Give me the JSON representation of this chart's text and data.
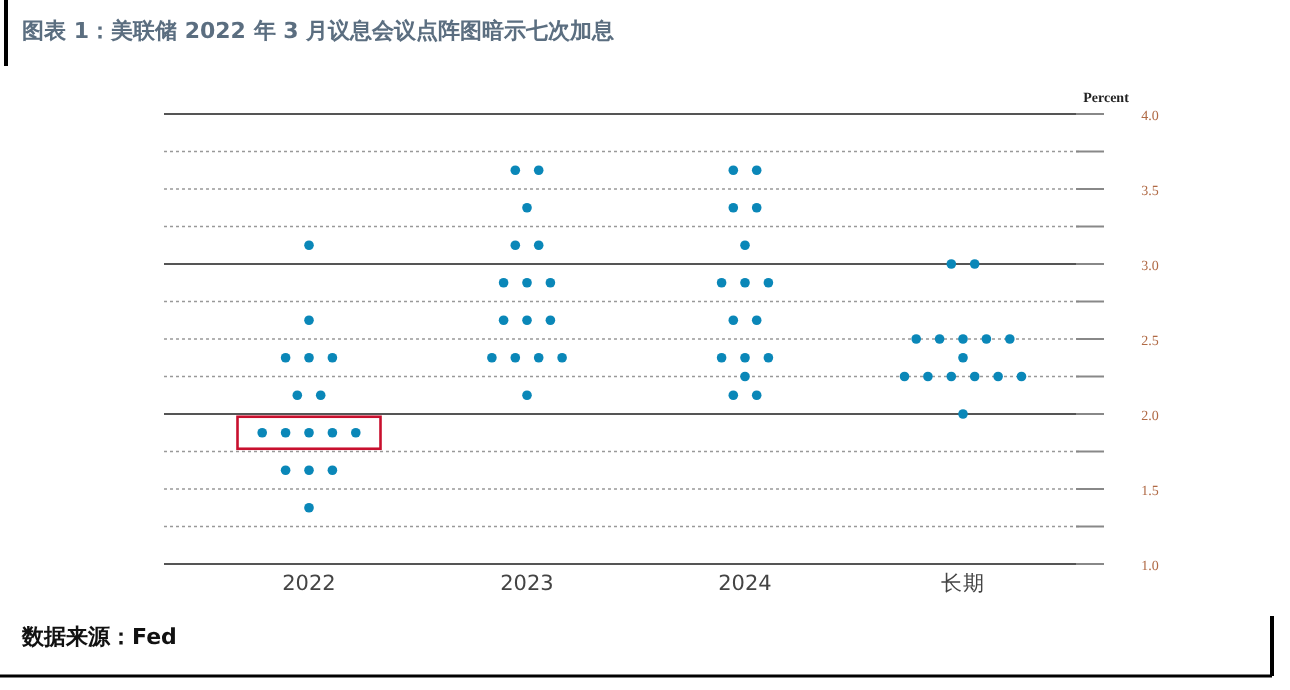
{
  "chart_data": {
    "type": "scatter",
    "title": "图表 1：美联储 2022 年 3 月议息会议点阵图暗示七次加息",
    "ylabel": "Percent",
    "annotations": [
      "数据来源：Fed"
    ],
    "categories": [
      "2022",
      "2023",
      "2024",
      "长期"
    ],
    "series": [
      {
        "color": "#0a87b8",
        "values": [
          3.125,
          3.625,
          3.625,
          3.0
        ]
      },
      {
        "color": "#0a87b8",
        "values": [
          2.625,
          3.625,
          3.625,
          3.0
        ]
      },
      {
        "color": "#0a87b8",
        "values": [
          2.375,
          3.375,
          3.375,
          2.5
        ]
      },
      {
        "color": "#0a87b8",
        "values": [
          2.375,
          3.125,
          3.375,
          2.5
        ]
      },
      {
        "color": "#0a87b8",
        "values": [
          2.375,
          3.125,
          3.125,
          2.5
        ]
      },
      {
        "color": "#0a87b8",
        "values": [
          2.125,
          2.875,
          2.875,
          2.5
        ]
      },
      {
        "color": "#0a87b8",
        "values": [
          2.125,
          2.875,
          2.875,
          2.5
        ]
      },
      {
        "color": "#0a87b8",
        "values": [
          1.875,
          2.875,
          2.875,
          2.375
        ]
      },
      {
        "color": "#0a87b8",
        "values": [
          1.875,
          2.625,
          2.625,
          2.25
        ]
      },
      {
        "color": "#0a87b8",
        "values": [
          1.875,
          2.625,
          2.625,
          2.25
        ]
      },
      {
        "color": "#0a87b8",
        "values": [
          1.875,
          2.625,
          2.375,
          2.25
        ]
      },
      {
        "color": "#0a87b8",
        "values": [
          1.875,
          2.375,
          2.375,
          2.25
        ]
      },
      {
        "color": "#0a87b8",
        "values": [
          1.625,
          2.375,
          2.375,
          2.25
        ]
      },
      {
        "color": "#0a87b8",
        "values": [
          1.625,
          2.375,
          2.25,
          2.25
        ]
      },
      {
        "color": "#0a87b8",
        "values": [
          1.625,
          2.375,
          2.125,
          2.0
        ]
      },
      {
        "color": "#0a87b8",
        "values": [
          1.375,
          2.125,
          2.125,
          null
        ]
      }
    ],
    "ylim": [
      1.0,
      4.0
    ],
    "yticks": [
      {
        "value": 1.0,
        "label": "1.0"
      },
      {
        "value": 1.25,
        "label": null
      },
      {
        "value": 1.5,
        "label": "1.5"
      },
      {
        "value": 1.75,
        "label": null
      },
      {
        "value": 2.0,
        "label": "2.0"
      },
      {
        "value": 2.25,
        "label": null
      },
      {
        "value": 2.5,
        "label": "2.5"
      },
      {
        "value": 2.75,
        "label": null
      },
      {
        "value": 3.0,
        "label": "3.0"
      },
      {
        "value": 3.25,
        "label": null
      },
      {
        "value": 3.5,
        "label": "3.5"
      },
      {
        "value": 3.75,
        "label": null
      },
      {
        "value": 4.0,
        "label": "4.0"
      }
    ],
    "grid": "y",
    "marker": "circle"
  }
}
